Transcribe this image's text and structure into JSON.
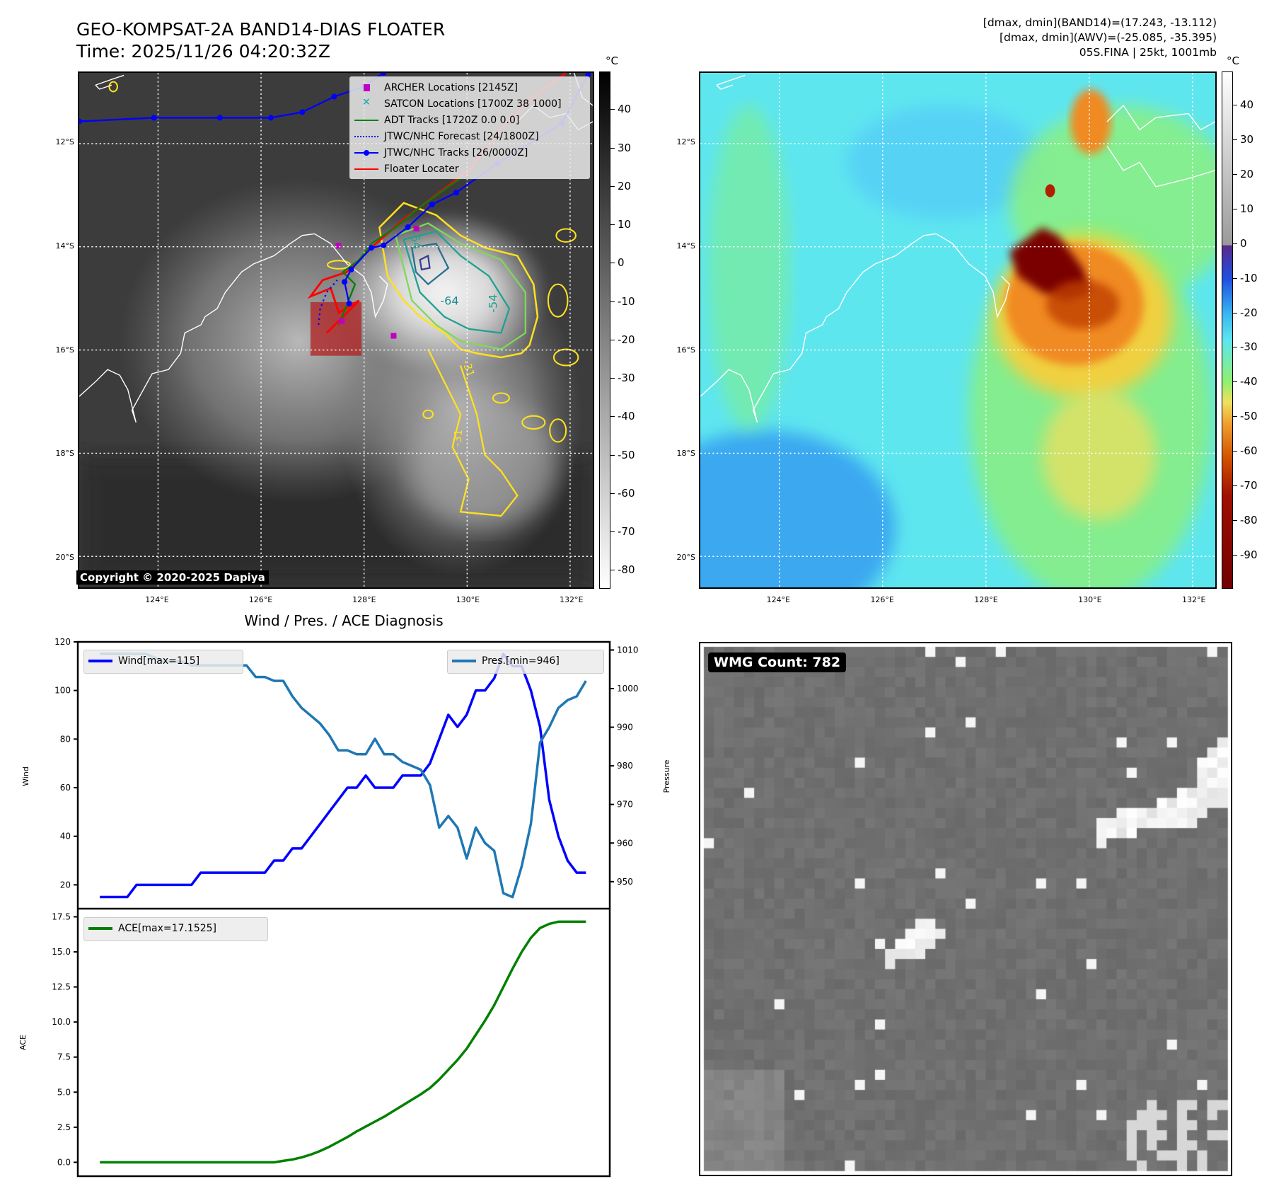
{
  "header": {
    "title_line1": "GEO-KOMPSAT-2A BAND14-DIAS FLOATER",
    "title_line2": "Time: 2025/11/26 04:20:32Z",
    "right_line1": "[dmax, dmin](BAND14)=(17.243, -13.112)",
    "right_line2": "[dmax, dmin](AWV)=(-25.085, -35.395)",
    "right_line3": "05S.FINA | 25kt, 1001mb"
  },
  "map": {
    "lon_labels": [
      "124°E",
      "126°E",
      "128°E",
      "130°E",
      "132°E"
    ],
    "lon_values": [
      124,
      126,
      128,
      130,
      132
    ],
    "lat_labels": [
      "12°S",
      "14°S",
      "16°S",
      "18°S",
      "20°S"
    ],
    "lat_values": [
      -12,
      -14,
      -16,
      -18,
      -20
    ],
    "extent": {
      "lon_min": 122.47,
      "lon_max": 132.44,
      "lat_max": -10.63,
      "lat_min": -20.6
    },
    "copyright": "Copyright © 2020-2025 Dapiya",
    "contour_labels": [
      "-64",
      "-64",
      "-54",
      "-31",
      "-31"
    ],
    "legend": [
      {
        "label": "ARCHER Locations [2145Z]",
        "color": "#c000c0",
        "symbol": "square"
      },
      {
        "label": "SATCON Locations [1700Z 38 1000]",
        "color": "#20b0b0",
        "symbol": "x"
      },
      {
        "label": "ADT Tracks [1720Z 0.0 0.0]",
        "color": "#008000",
        "symbol": "line"
      },
      {
        "label": "JTWC/NHC Forecast [24/1800Z]",
        "color": "#0000ff",
        "symbol": "dotted"
      },
      {
        "label": "JTWC/NHC Tracks [26/0000Z]",
        "color": "#0000ff",
        "symbol": "line-dot"
      },
      {
        "label": "Floater Locater",
        "color": "#ff0000",
        "symbol": "line"
      }
    ],
    "jtwc_track_west": [
      [
        122.47,
        -11.57
      ],
      [
        123.92,
        -11.5
      ],
      [
        125.2,
        -11.5
      ],
      [
        126.19,
        -11.5
      ],
      [
        126.8,
        -11.39
      ],
      [
        127.42,
        -11.09
      ],
      [
        127.98,
        -10.9
      ],
      [
        128.38,
        -10.63
      ]
    ],
    "jtwc_track_main": [
      [
        132.35,
        -10.66
      ],
      [
        131.84,
        -11.61
      ],
      [
        130.58,
        -12.39
      ],
      [
        129.79,
        -12.95
      ],
      [
        129.32,
        -13.18
      ],
      [
        128.85,
        -13.62
      ],
      [
        128.38,
        -13.97
      ],
      [
        128.14,
        -14.02
      ],
      [
        127.75,
        -14.44
      ],
      [
        127.62,
        -14.68
      ],
      [
        127.71,
        -15.1
      ]
    ]
  },
  "colorbar_gray": {
    "unit": "°C",
    "ticks": [
      40,
      30,
      20,
      10,
      0,
      -10,
      -20,
      -30,
      -40,
      -50,
      -60,
      -70,
      -80
    ],
    "range": [
      50,
      -84.7
    ]
  },
  "colorbar_color": {
    "unit": "°C",
    "ticks": [
      40,
      30,
      20,
      10,
      0,
      -10,
      -20,
      -30,
      -40,
      -50,
      -60,
      -70,
      -80,
      -90
    ],
    "range": [
      49.9,
      -99.7
    ]
  },
  "wmg": {
    "label": "WMG Count: 782"
  },
  "chart_data": [
    {
      "type": "line",
      "title": "Wind / Pres. / ACE Diagnosis",
      "ylabel": "Wind",
      "ylabel_right": "Pressure",
      "ylim": [
        10.2,
        120
      ],
      "ylim_right": [
        943,
        1012.1
      ],
      "yticks": [
        20,
        40,
        60,
        80,
        100,
        120
      ],
      "yticks_right": [
        950,
        960,
        970,
        980,
        990,
        1000,
        1010
      ],
      "series": [
        {
          "name": "Wind[max=115]",
          "color": "#0000ff",
          "axis": "left",
          "values": [
            15,
            15,
            15,
            15,
            20,
            20,
            20,
            20,
            20,
            20,
            20,
            25,
            25,
            25,
            25,
            25,
            25,
            25,
            25,
            30,
            30,
            35,
            35,
            40,
            45,
            50,
            55,
            60,
            60,
            65,
            60,
            60,
            60,
            65,
            65,
            65,
            70,
            80,
            90,
            85,
            90,
            100,
            100,
            105,
            115,
            110,
            110,
            100,
            85,
            55,
            40,
            30,
            25,
            25
          ]
        },
        {
          "name": "Pres.[min=946]",
          "color": "#1f77b4",
          "axis": "right",
          "values": [
            1009,
            1009,
            1009,
            1009,
            1009,
            1009,
            1008,
            1007,
            1007,
            1007,
            1006,
            1006,
            1006,
            1006,
            1006,
            1006,
            1006,
            1003,
            1003,
            1002,
            1002,
            998,
            995,
            993,
            991,
            988,
            984,
            984,
            983,
            983,
            987,
            983,
            983,
            981,
            980,
            979,
            975,
            964,
            967,
            964,
            956,
            964,
            960,
            958,
            947,
            946,
            954,
            965,
            986,
            990,
            995,
            997,
            998,
            1002
          ]
        }
      ]
    },
    {
      "type": "line",
      "ylabel": "ACE",
      "ylim": [
        -0.99,
        18.08
      ],
      "yticks": [
        "0.0",
        "2.5",
        "5.0",
        "7.5",
        "10.0",
        "12.5",
        "15.0",
        "17.5"
      ],
      "series": [
        {
          "name": "ACE[max=17.1525]",
          "color": "#008000",
          "values": [
            0,
            0,
            0,
            0,
            0,
            0,
            0,
            0,
            0,
            0,
            0,
            0,
            0,
            0,
            0,
            0,
            0,
            0,
            0,
            0,
            0.1,
            0.2,
            0.35,
            0.55,
            0.8,
            1.1,
            1.45,
            1.8,
            2.2,
            2.55,
            2.9,
            3.25,
            3.65,
            4.05,
            4.45,
            4.85,
            5.3,
            5.9,
            6.6,
            7.3,
            8.1,
            9.1,
            10.1,
            11.2,
            12.5,
            13.8,
            15.0,
            16.0,
            16.7,
            17.0,
            17.15,
            17.15,
            17.15,
            17.15
          ]
        }
      ]
    }
  ]
}
